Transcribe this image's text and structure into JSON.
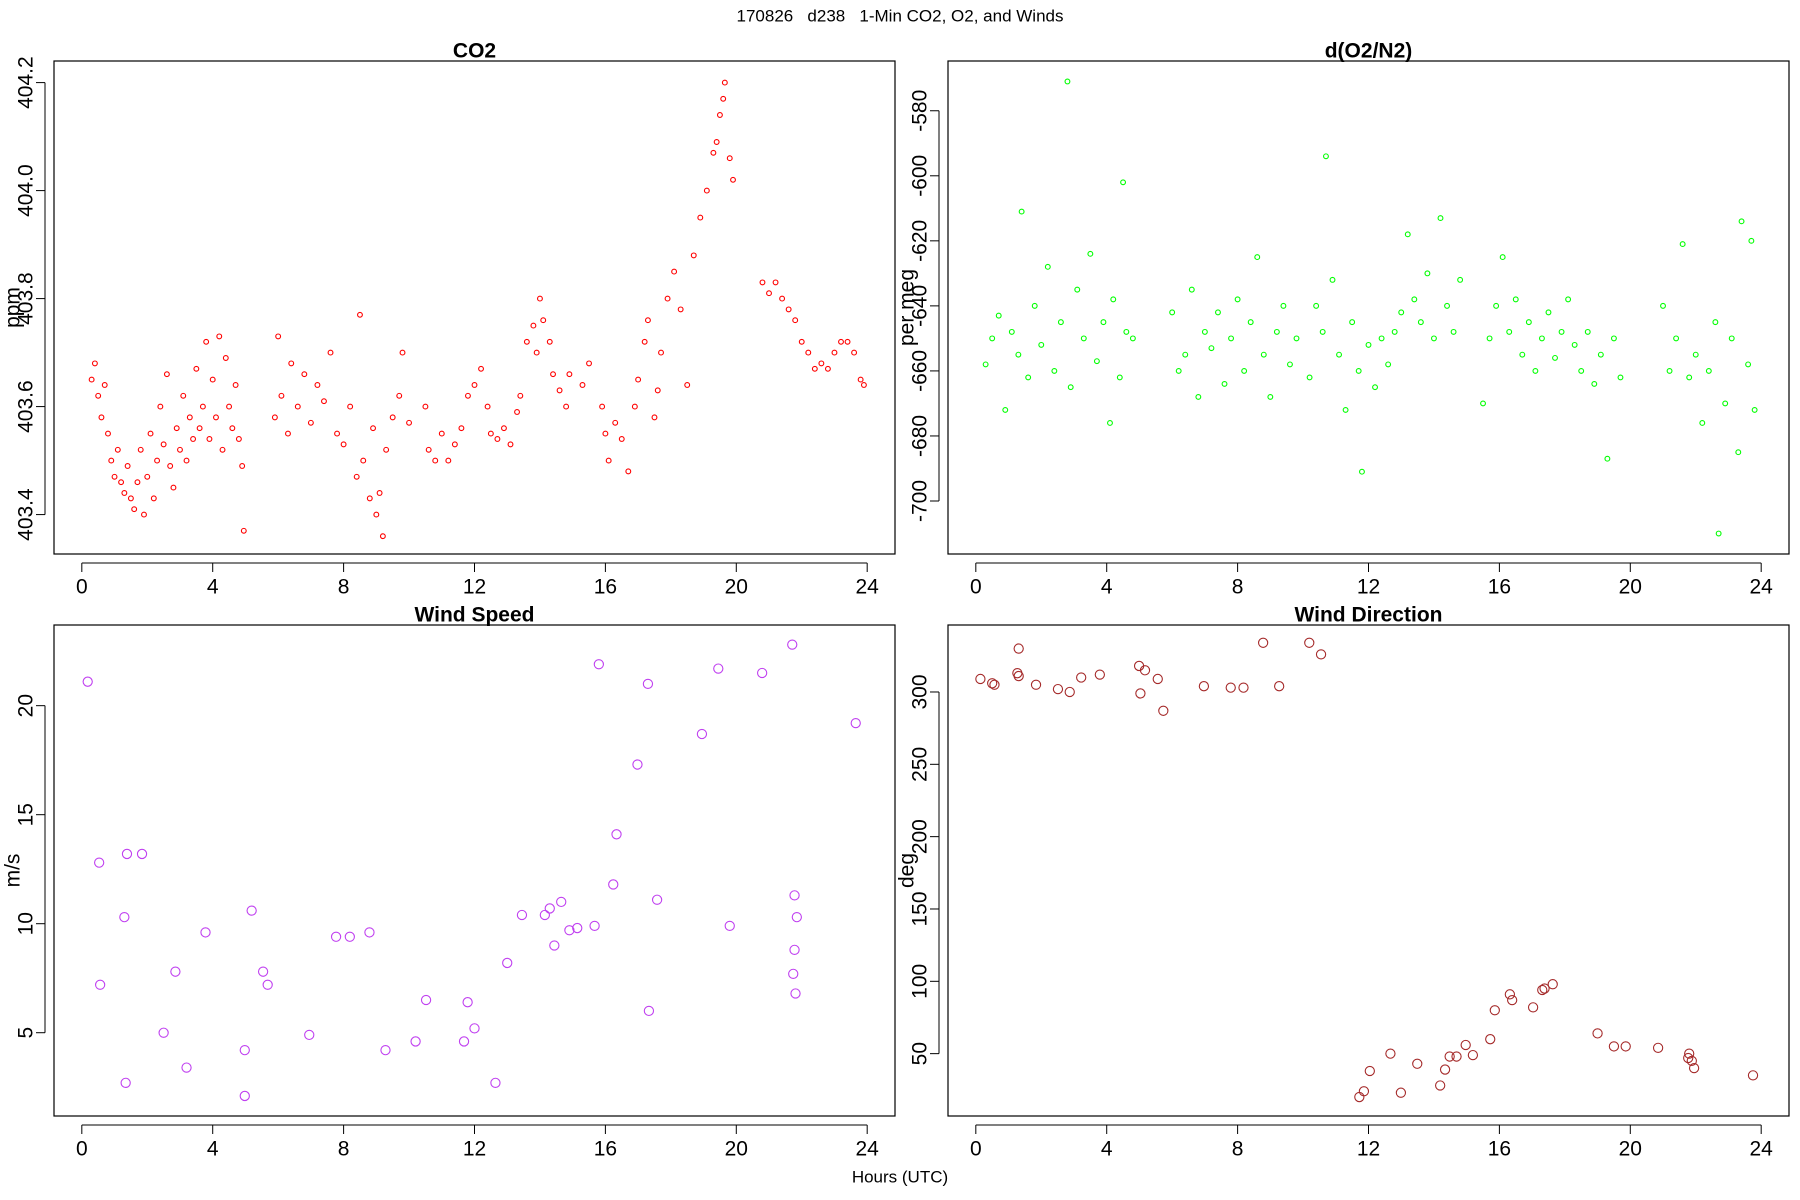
{
  "title": "170826   d238   1-Min CO2, O2, and Winds",
  "xlabel": "Hours (UTC)",
  "chart_data": [
    {
      "type": "scatter",
      "title": "CO2",
      "ylabel": "ppm",
      "color": "#ff0000",
      "xlim": [
        -0.85,
        24.85
      ],
      "xticks": [
        0,
        4,
        8,
        12,
        16,
        20,
        24
      ],
      "ylim": [
        403.327,
        404.24
      ],
      "yticks": [
        403.4,
        403.6,
        403.8,
        {
          "value": 404,
          "label": "404.0"
        },
        404.2
      ],
      "x": [
        0.3,
        0.4,
        0.5,
        0.6,
        0.7,
        0.8,
        0.9,
        1.0,
        1.1,
        1.2,
        1.3,
        1.4,
        1.5,
        1.6,
        1.7,
        1.8,
        1.9,
        2.0,
        2.1,
        2.2,
        2.3,
        2.4,
        2.5,
        2.6,
        2.7,
        2.8,
        2.9,
        3.0,
        3.1,
        3.2,
        3.3,
        3.4,
        3.5,
        3.6,
        3.7,
        3.8,
        3.9,
        4.0,
        4.1,
        4.2,
        4.3,
        4.4,
        4.5,
        4.6,
        4.7,
        4.8,
        4.9,
        4.95,
        5.9,
        6.0,
        6.1,
        6.3,
        6.4,
        6.6,
        6.8,
        7.0,
        7.2,
        7.4,
        7.6,
        7.8,
        8.0,
        8.2,
        8.4,
        8.5,
        8.6,
        8.8,
        8.9,
        9.0,
        9.1,
        9.2,
        9.3,
        9.5,
        9.7,
        9.8,
        10.0,
        10.5,
        10.6,
        10.8,
        11.0,
        11.2,
        11.4,
        11.6,
        11.8,
        12.0,
        12.2,
        12.4,
        12.5,
        12.7,
        12.9,
        13.1,
        13.3,
        13.4,
        13.6,
        13.8,
        13.9,
        14.0,
        14.1,
        14.3,
        14.4,
        14.6,
        14.8,
        14.9,
        15.3,
        15.5,
        15.9,
        16.0,
        16.1,
        16.3,
        16.5,
        16.7,
        16.9,
        17.0,
        17.2,
        17.3,
        17.5,
        17.6,
        17.7,
        17.9,
        18.1,
        18.3,
        18.5,
        18.7,
        18.9,
        19.1,
        19.3,
        19.4,
        19.5,
        19.6,
        19.65,
        19.8,
        19.9,
        20.8,
        21.0,
        21.2,
        21.4,
        21.6,
        21.8,
        22.0,
        22.2,
        22.4,
        22.6,
        22.8,
        23.0,
        23.2,
        23.4,
        23.6,
        23.8,
        23.9
      ],
      "values": [
        403.65,
        403.68,
        403.62,
        403.58,
        403.64,
        403.55,
        403.5,
        403.47,
        403.52,
        403.46,
        403.44,
        403.49,
        403.43,
        403.41,
        403.46,
        403.52,
        403.4,
        403.47,
        403.55,
        403.43,
        403.5,
        403.6,
        403.53,
        403.66,
        403.49,
        403.45,
        403.56,
        403.52,
        403.62,
        403.5,
        403.58,
        403.54,
        403.67,
        403.56,
        403.6,
        403.72,
        403.54,
        403.65,
        403.58,
        403.73,
        403.52,
        403.69,
        403.6,
        403.56,
        403.64,
        403.54,
        403.49,
        403.37,
        403.58,
        403.73,
        403.62,
        403.55,
        403.68,
        403.6,
        403.66,
        403.57,
        403.64,
        403.61,
        403.7,
        403.55,
        403.53,
        403.6,
        403.47,
        403.77,
        403.5,
        403.43,
        403.56,
        403.4,
        403.44,
        403.36,
        403.52,
        403.58,
        403.62,
        403.7,
        403.57,
        403.6,
        403.52,
        403.5,
        403.55,
        403.5,
        403.53,
        403.56,
        403.62,
        403.64,
        403.67,
        403.6,
        403.55,
        403.54,
        403.56,
        403.53,
        403.59,
        403.62,
        403.72,
        403.75,
        403.7,
        403.8,
        403.76,
        403.72,
        403.66,
        403.63,
        403.6,
        403.66,
        403.64,
        403.68,
        403.6,
        403.55,
        403.5,
        403.57,
        403.54,
        403.48,
        403.6,
        403.65,
        403.72,
        403.76,
        403.58,
        403.63,
        403.7,
        403.8,
        403.85,
        403.78,
        403.64,
        403.88,
        403.95,
        404.0,
        404.07,
        404.09,
        404.14,
        404.17,
        404.2,
        404.06,
        404.02,
        403.83,
        403.81,
        403.83,
        403.8,
        403.78,
        403.76,
        403.72,
        403.7,
        403.67,
        403.68,
        403.67,
        403.7,
        403.72,
        403.72,
        403.7,
        403.65,
        403.64
      ]
    },
    {
      "type": "scatter",
      "title": "d(O2/N2)",
      "ylabel": "per meg",
      "color": "#00ff00",
      "xlim": [
        -0.85,
        24.85
      ],
      "xticks": [
        0,
        4,
        8,
        12,
        16,
        20,
        24
      ],
      "ylim": [
        -716.3,
        -564.7
      ],
      "yticks": [
        -700,
        -680,
        -660,
        -640,
        -620,
        -600,
        -580
      ],
      "x": [
        0.3,
        0.5,
        0.7,
        0.9,
        1.1,
        1.3,
        1.4,
        1.6,
        1.8,
        2.0,
        2.2,
        2.4,
        2.6,
        2.8,
        2.9,
        3.1,
        3.3,
        3.5,
        3.7,
        3.9,
        4.1,
        4.2,
        4.4,
        4.5,
        4.6,
        4.8,
        6.0,
        6.2,
        6.4,
        6.6,
        6.8,
        7.0,
        7.2,
        7.4,
        7.6,
        7.8,
        8.0,
        8.2,
        8.4,
        8.6,
        8.8,
        9.0,
        9.2,
        9.4,
        9.6,
        9.8,
        10.2,
        10.4,
        10.6,
        10.7,
        10.9,
        11.1,
        11.3,
        11.5,
        11.7,
        11.8,
        12.0,
        12.2,
        12.4,
        12.6,
        12.8,
        13.0,
        13.2,
        13.4,
        13.6,
        13.8,
        14.0,
        14.2,
        14.4,
        14.6,
        14.8,
        15.5,
        15.7,
        15.9,
        16.1,
        16.3,
        16.5,
        16.7,
        16.9,
        17.1,
        17.3,
        17.5,
        17.7,
        17.9,
        18.1,
        18.3,
        18.5,
        18.7,
        18.9,
        19.1,
        19.3,
        19.5,
        19.7,
        21.0,
        21.2,
        21.4,
        21.6,
        21.8,
        22.0,
        22.2,
        22.4,
        22.6,
        22.7,
        22.9,
        23.1,
        23.3,
        23.4,
        23.6,
        23.7,
        23.8
      ],
      "values": [
        -658,
        -650,
        -643,
        -672,
        -648,
        -655,
        -611,
        -662,
        -640,
        -652,
        -628,
        -660,
        -645,
        -571,
        -665,
        -635,
        -650,
        -624,
        -657,
        -645,
        -676,
        -638,
        -662,
        -602,
        -648,
        -650,
        -642,
        -660,
        -655,
        -635,
        -668,
        -648,
        -653,
        -642,
        -664,
        -650,
        -638,
        -660,
        -645,
        -625,
        -655,
        -668,
        -648,
        -640,
        -658,
        -650,
        -662,
        -640,
        -648,
        -594,
        -632,
        -655,
        -672,
        -645,
        -660,
        -691,
        -652,
        -665,
        -650,
        -658,
        -648,
        -642,
        -618,
        -638,
        -645,
        -630,
        -650,
        -613,
        -640,
        -648,
        -632,
        -670,
        -650,
        -640,
        -625,
        -648,
        -638,
        -655,
        -645,
        -660,
        -650,
        -642,
        -656,
        -648,
        -638,
        -652,
        -660,
        -648,
        -664,
        -655,
        -687,
        -650,
        -662,
        -640,
        -660,
        -650,
        -621,
        -662,
        -655,
        -676,
        -660,
        -645,
        -710,
        -670,
        -650,
        -685,
        -614,
        -658,
        -620,
        -672
      ]
    },
    {
      "type": "scatter",
      "title": "Wind Speed",
      "ylabel": "m/s",
      "color": "#c040f0",
      "xlim": [
        -0.85,
        24.85
      ],
      "xticks": [
        0,
        4,
        8,
        12,
        16,
        20,
        24
      ],
      "ylim": [
        1.18,
        23.7
      ],
      "yticks": [
        5,
        10,
        15,
        20
      ],
      "x": [
        0.18,
        0.53,
        0.56,
        1.3,
        1.38,
        1.34,
        1.84,
        2.5,
        2.86,
        3.2,
        3.78,
        4.98,
        4.98,
        5.19,
        5.54,
        5.68,
        6.95,
        7.77,
        8.19,
        8.79,
        9.28,
        10.2,
        10.52,
        11.68,
        11.79,
        12.0,
        12.64,
        13.0,
        13.45,
        14.15,
        14.3,
        14.44,
        14.65,
        14.9,
        15.14,
        15.67,
        15.8,
        16.24,
        16.34,
        16.98,
        17.3,
        17.33,
        17.58,
        18.95,
        19.45,
        19.8,
        20.79,
        21.71,
        21.78,
        21.78,
        21.74,
        21.81,
        21.85,
        23.65
      ],
      "values": [
        21.1,
        12.8,
        7.2,
        10.3,
        13.2,
        2.7,
        13.2,
        5.0,
        7.8,
        3.4,
        9.6,
        4.2,
        2.1,
        10.6,
        7.8,
        7.2,
        4.9,
        9.4,
        9.4,
        9.6,
        4.2,
        4.6,
        6.5,
        4.6,
        6.4,
        5.2,
        2.7,
        8.2,
        10.4,
        10.4,
        10.7,
        9.0,
        11.0,
        9.7,
        9.8,
        9.9,
        21.9,
        11.8,
        14.1,
        17.3,
        21.0,
        6.0,
        11.1,
        18.7,
        21.7,
        9.9,
        21.5,
        22.8,
        11.3,
        8.8,
        7.7,
        6.8,
        10.3,
        19.2
      ]
    },
    {
      "type": "scatter",
      "title": "Wind Direction",
      "ylabel": "deg",
      "color": "#a52a2a",
      "xlim": [
        -0.85,
        24.85
      ],
      "xticks": [
        0,
        4,
        8,
        12,
        16,
        20,
        24
      ],
      "ylim": [
        6.9,
        346.3
      ],
      "yticks": [
        50,
        100,
        150,
        200,
        250,
        300
      ],
      "x": [
        0.14,
        0.5,
        0.57,
        1.31,
        1.27,
        1.31,
        1.84,
        2.51,
        2.87,
        3.22,
        3.79,
        4.99,
        5.17,
        5.03,
        5.56,
        5.73,
        6.97,
        7.79,
        8.18,
        8.78,
        9.27,
        10.19,
        10.55,
        11.72,
        11.86,
        12.04,
        12.67,
        12.99,
        13.49,
        14.19,
        14.34,
        14.48,
        14.69,
        14.97,
        15.19,
        15.72,
        15.86,
        16.32,
        16.39,
        17.03,
        17.38,
        17.31,
        17.63,
        19.0,
        19.5,
        19.86,
        20.85,
        21.8,
        21.77,
        21.88,
        21.95,
        23.75
      ],
      "values": [
        309,
        306,
        305,
        330,
        313,
        311,
        305,
        302,
        300,
        310,
        312,
        318,
        315,
        299,
        309,
        287,
        304,
        303,
        303,
        334,
        304,
        334,
        326,
        20,
        24,
        38,
        50,
        23,
        43,
        28,
        39,
        48,
        48,
        56,
        49,
        60,
        80,
        91,
        87,
        82,
        95,
        94,
        98,
        64,
        55,
        55,
        54,
        50,
        47,
        45,
        40,
        35
      ]
    }
  ]
}
